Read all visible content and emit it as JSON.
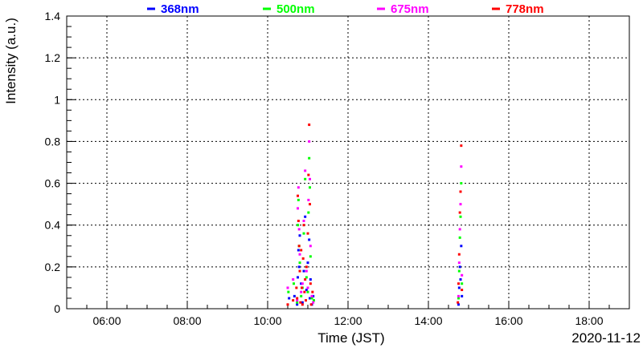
{
  "chart_data": {
    "type": "scatter",
    "xlabel": "Time (JST)",
    "ylabel": "Intensity (a.u.)",
    "date_label": "2020-11-12",
    "xlim": [
      "05:00",
      "19:00"
    ],
    "ylim": [
      0,
      1.4
    ],
    "x_ticks": [
      "06:00",
      "08:00",
      "10:00",
      "12:00",
      "14:00",
      "16:00",
      "18:00"
    ],
    "y_ticks": [
      "0",
      "0.2",
      "0.4",
      "0.6",
      "0.8",
      "1",
      "1.2",
      "1.4"
    ],
    "grid": true,
    "legend_position": "top",
    "series": [
      {
        "name": "368nm",
        "color": "#0000ff",
        "points": [
          [
            "10:32",
            0.05
          ],
          [
            "10:40",
            0.06
          ],
          [
            "10:44",
            0.02
          ],
          [
            "10:45",
            0.15
          ],
          [
            "10:46",
            0.28
          ],
          [
            "10:47",
            0.2
          ],
          [
            "10:48",
            0.35
          ],
          [
            "10:50",
            0.12
          ],
          [
            "10:52",
            0.03
          ],
          [
            "10:54",
            0.18
          ],
          [
            "10:56",
            0.44
          ],
          [
            "10:58",
            0.09
          ],
          [
            "11:00",
            0.22
          ],
          [
            "11:02",
            0.33
          ],
          [
            "11:03",
            0.05
          ],
          [
            "11:04",
            0.14
          ],
          [
            "11:06",
            0.02
          ],
          [
            "11:08",
            0.06
          ],
          [
            "14:45",
            0.02
          ],
          [
            "14:46",
            0.1
          ],
          [
            "14:47",
            0.2
          ],
          [
            "14:48",
            0.14
          ],
          [
            "14:49",
            0.3
          ],
          [
            "14:50",
            0.06
          ]
        ]
      },
      {
        "name": "500nm",
        "color": "#00ff00",
        "points": [
          [
            "10:31",
            0.08
          ],
          [
            "10:39",
            0.12
          ],
          [
            "10:44",
            0.03
          ],
          [
            "10:45",
            0.4
          ],
          [
            "10:46",
            0.52
          ],
          [
            "10:47",
            0.3
          ],
          [
            "10:48",
            0.22
          ],
          [
            "10:50",
            0.06
          ],
          [
            "10:52",
            0.1
          ],
          [
            "10:54",
            0.36
          ],
          [
            "10:56",
            0.62
          ],
          [
            "10:58",
            0.15
          ],
          [
            "11:00",
            0.08
          ],
          [
            "11:01",
            0.46
          ],
          [
            "11:02",
            0.72
          ],
          [
            "11:03",
            0.58
          ],
          [
            "11:04",
            0.25
          ],
          [
            "11:06",
            0.05
          ],
          [
            "11:09",
            0.04
          ],
          [
            "14:45",
            0.05
          ],
          [
            "14:46",
            0.18
          ],
          [
            "14:47",
            0.34
          ],
          [
            "14:48",
            0.44
          ],
          [
            "14:49",
            0.6
          ],
          [
            "14:50",
            0.12
          ]
        ]
      },
      {
        "name": "675nm",
        "color": "#ff00ff",
        "points": [
          [
            "10:30",
            0.1
          ],
          [
            "10:38",
            0.14
          ],
          [
            "10:44",
            0.04
          ],
          [
            "10:45",
            0.48
          ],
          [
            "10:46",
            0.58
          ],
          [
            "10:47",
            0.38
          ],
          [
            "10:48",
            0.26
          ],
          [
            "10:50",
            0.08
          ],
          [
            "10:52",
            0.12
          ],
          [
            "10:54",
            0.42
          ],
          [
            "10:56",
            0.66
          ],
          [
            "10:58",
            0.18
          ],
          [
            "11:00",
            0.1
          ],
          [
            "11:01",
            0.52
          ],
          [
            "11:02",
            0.8
          ],
          [
            "11:03",
            0.62
          ],
          [
            "11:04",
            0.3
          ],
          [
            "11:06",
            0.06
          ],
          [
            "11:08",
            0.03
          ],
          [
            "14:45",
            0.06
          ],
          [
            "14:46",
            0.22
          ],
          [
            "14:47",
            0.38
          ],
          [
            "14:48",
            0.5
          ],
          [
            "14:49",
            0.68
          ],
          [
            "14:50",
            0.16
          ]
        ]
      },
      {
        "name": "778nm",
        "color": "#ff0000",
        "points": [
          [
            "10:30",
            0.02
          ],
          [
            "10:38",
            0.04
          ],
          [
            "10:43",
            0.1
          ],
          [
            "10:44",
            0.05
          ],
          [
            "10:45",
            0.54
          ],
          [
            "10:46",
            0.42
          ],
          [
            "10:47",
            0.3
          ],
          [
            "10:48",
            0.18
          ],
          [
            "10:49",
            0.03
          ],
          [
            "10:50",
            0.28
          ],
          [
            "10:51",
            0.1
          ],
          [
            "10:52",
            0.02
          ],
          [
            "10:53",
            0.24
          ],
          [
            "10:54",
            0.4
          ],
          [
            "10:55",
            0.08
          ],
          [
            "10:56",
            0.14
          ],
          [
            "10:57",
            0.04
          ],
          [
            "10:58",
            0.2
          ],
          [
            "11:00",
            0.36
          ],
          [
            "11:01",
            0.64
          ],
          [
            "11:02",
            0.88
          ],
          [
            "11:03",
            0.5
          ],
          [
            "11:04",
            0.12
          ],
          [
            "11:05",
            0.02
          ],
          [
            "11:07",
            0.08
          ],
          [
            "14:44",
            0.03
          ],
          [
            "14:45",
            0.12
          ],
          [
            "14:46",
            0.26
          ],
          [
            "14:47",
            0.46
          ],
          [
            "14:48",
            0.56
          ],
          [
            "14:49",
            0.78
          ],
          [
            "14:50",
            0.09
          ]
        ]
      }
    ]
  }
}
